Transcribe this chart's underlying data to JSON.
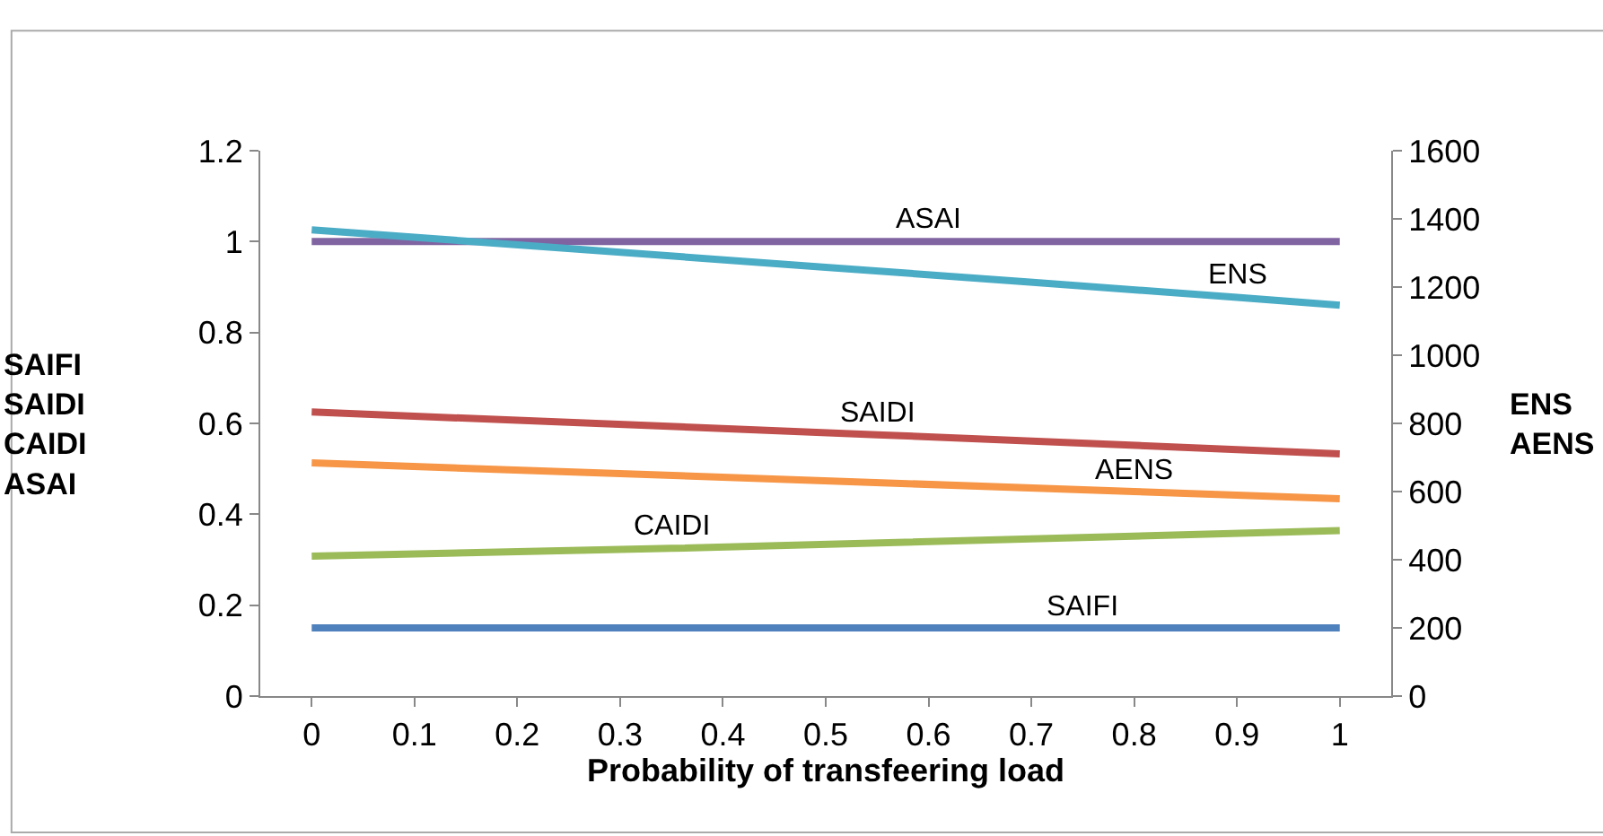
{
  "chart_data": {
    "type": "line",
    "xlabel": "Probability of transfeering load",
    "ylabel": "SAIFI\nSAIDI\nCAIDI\nASAI",
    "y2label": "ENS\nAENS",
    "xlim": [
      -0.05,
      1.05
    ],
    "xticks": [
      0,
      0.1,
      0.2,
      0.3,
      0.4,
      0.5,
      0.6,
      0.7,
      0.8,
      0.9,
      1
    ],
    "ylim": [
      0,
      1.2
    ],
    "yticks": [
      0,
      0.2,
      0.4,
      0.6,
      0.8,
      1,
      1.2
    ],
    "y2lim": [
      0,
      1600
    ],
    "y2ticks": [
      0,
      200,
      400,
      600,
      800,
      1000,
      1200,
      1400,
      1600
    ],
    "legend": false,
    "marker": "none",
    "line_style": "solid",
    "series": [
      {
        "name": "ASAI",
        "color": "#8064a2",
        "x": [
          0,
          0.6,
          1
        ],
        "values": [
          1,
          1,
          1
        ]
      },
      {
        "name": "ENS",
        "color": "#4bacc6",
        "axis": "y2",
        "x": [
          0,
          0.5,
          0.9,
          1
        ],
        "values": [
          1368,
          1258,
          1170,
          1147
        ]
      },
      {
        "name": "SAIDI",
        "color": "#c0504d",
        "x": [
          0,
          0.55,
          1
        ],
        "values": [
          0.625,
          0.575,
          0.533
        ]
      },
      {
        "name": "AENS",
        "color": "#f79646",
        "axis": "y2",
        "x": [
          0,
          0.8,
          1
        ],
        "values": [
          684,
          600,
          579
        ]
      },
      {
        "name": "CAIDI",
        "color": "#9bbb59",
        "x": [
          0,
          0.35,
          1
        ],
        "values": [
          0.308,
          0.325,
          0.364
        ]
      },
      {
        "name": "SAIFI",
        "color": "#4f81bd",
        "x": [
          0,
          0.75,
          1
        ],
        "values": [
          0.15,
          0.15,
          0.15
        ]
      }
    ]
  }
}
